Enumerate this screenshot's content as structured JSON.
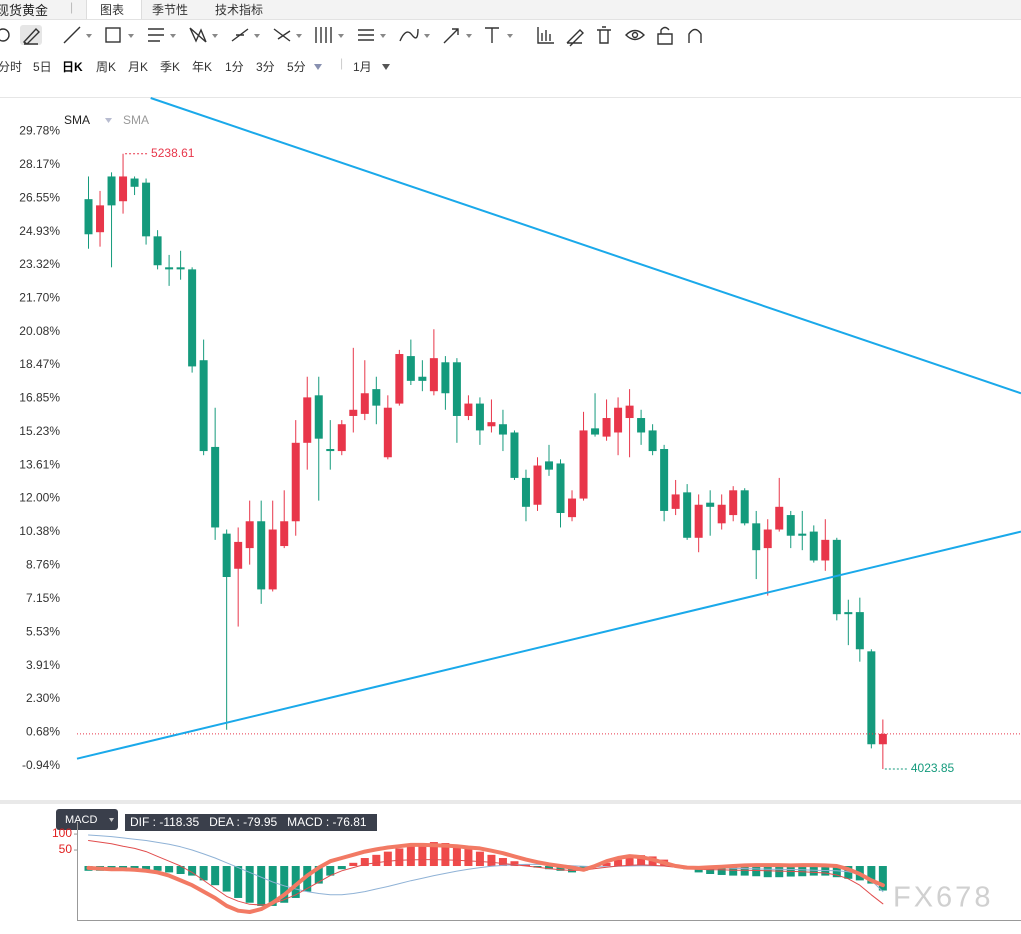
{
  "tabs": [
    "现货黄金",
    "图表",
    "季节性",
    "技术指标"
  ],
  "periods": [
    "分时",
    "5日",
    "日K",
    "周K",
    "月K",
    "季K",
    "年K",
    "1分",
    "3分",
    "5分",
    "1月"
  ],
  "indicators": {
    "main": [
      "SMA",
      "SMA"
    ],
    "sub": "MACD",
    "macd_info": "DIF : -118.35   DEA : -79.95   MACD : -76.81"
  },
  "watermark": "FX678",
  "chart_data": [
    {
      "type": "candlestick",
      "xlim": [
        -1,
        81
      ],
      "ylim": [
        -2.6,
        31.4
      ],
      "yticks": [
        {
          "value": 29.78,
          "label": "29.78%"
        },
        {
          "value": 28.17,
          "label": "28.17%"
        },
        {
          "value": 26.55,
          "label": "26.55%"
        },
        {
          "value": 24.93,
          "label": "24.93%"
        },
        {
          "value": 23.32,
          "label": "23.32%"
        },
        {
          "value": 21.7,
          "label": "21.70%"
        },
        {
          "value": 20.08,
          "label": "20.08%"
        },
        {
          "value": 18.47,
          "label": "18.47%"
        },
        {
          "value": 16.85,
          "label": "16.85%"
        },
        {
          "value": 15.23,
          "label": "15.23%"
        },
        {
          "value": 13.61,
          "label": "13.61%"
        },
        {
          "value": 12.0,
          "label": "12.00%"
        },
        {
          "value": 10.38,
          "label": "10.38%"
        },
        {
          "value": 8.76,
          "label": "8.76%"
        },
        {
          "value": 7.15,
          "label": "7.15%"
        },
        {
          "value": 5.53,
          "label": "5.53%"
        },
        {
          "value": 3.91,
          "label": "3.91%"
        },
        {
          "value": 2.3,
          "label": "2.30%"
        },
        {
          "value": 0.68,
          "label": "0.68%"
        },
        {
          "value": -0.94,
          "label": "-0.94%"
        }
      ],
      "up_color": "#e8364a",
      "down_color": "#149a7c",
      "open": [
        26.5,
        24.9,
        27.6,
        26.4,
        27.5,
        27.3,
        24.7,
        23.2,
        23.2,
        23.1,
        18.7,
        14.5,
        10.3,
        8.6,
        9.6,
        10.9,
        7.6,
        9.7,
        10.9,
        14.7,
        17.0,
        14.4,
        14.3,
        16.0,
        16.1,
        17.3,
        14.0,
        16.6,
        18.9,
        17.9,
        17.2,
        18.6,
        18.6,
        16.0,
        16.6,
        15.5,
        15.6,
        15.2,
        13.0,
        11.7,
        13.8,
        13.7,
        11.1,
        12.0,
        15.4,
        15.0,
        15.2,
        15.9,
        15.9,
        15.3,
        14.4,
        11.5,
        12.3,
        10.1,
        11.8,
        10.8,
        11.2,
        12.4,
        10.8,
        9.6,
        10.5,
        11.2,
        10.3,
        10.4,
        9.0,
        10.0,
        6.5,
        6.5,
        4.6,
        0.1
      ],
      "high": [
        27.6,
        26.9,
        27.8,
        28.7,
        27.6,
        27.5,
        25.0,
        23.8,
        24.0,
        23.2,
        19.7,
        16.4,
        10.5,
        10.6,
        11.9,
        11.9,
        11.9,
        12.4,
        15.8,
        17.9,
        17.9,
        15.8,
        15.8,
        19.3,
        18.7,
        17.9,
        17.0,
        19.2,
        19.7,
        18.7,
        20.2,
        18.9,
        18.8,
        17.0,
        16.9,
        16.8,
        16.3,
        15.3,
        13.4,
        14.0,
        14.6,
        13.9,
        12.4,
        16.2,
        17.1,
        16.8,
        16.9,
        17.3,
        16.3,
        15.6,
        14.6,
        12.9,
        12.7,
        12.2,
        12.4,
        12.2,
        12.6,
        12.5,
        11.4,
        11.0,
        13.0,
        11.4,
        11.4,
        10.7,
        11.0,
        10.1,
        7.1,
        7.2,
        4.7,
        1.3
      ],
      "low": [
        24.1,
        24.2,
        23.2,
        25.8,
        26.7,
        24.3,
        23.1,
        22.3,
        22.6,
        18.1,
        14.1,
        10.0,
        0.8,
        5.8,
        8.8,
        6.9,
        7.5,
        9.6,
        10.2,
        13.4,
        11.9,
        13.4,
        14.1,
        15.2,
        15.8,
        15.6,
        13.9,
        16.5,
        17.5,
        17.2,
        17.0,
        16.3,
        14.7,
        15.8,
        14.6,
        15.2,
        14.3,
        12.9,
        10.9,
        11.4,
        13.1,
        10.6,
        10.9,
        11.9,
        15.0,
        14.8,
        14.1,
        14.0,
        14.6,
        14.1,
        10.9,
        11.2,
        10.0,
        9.4,
        10.2,
        10.5,
        10.9,
        10.7,
        8.1,
        7.3,
        10.4,
        9.6,
        9.5,
        8.9,
        8.5,
        6.1,
        4.9,
        4.1,
        -0.1,
        -1.1
      ],
      "close": [
        24.8,
        26.2,
        26.2,
        27.6,
        27.1,
        24.7,
        23.3,
        23.1,
        23.1,
        18.4,
        14.3,
        10.6,
        8.2,
        9.9,
        10.9,
        7.6,
        10.5,
        10.9,
        14.7,
        16.9,
        14.9,
        14.3,
        15.6,
        16.3,
        17.1,
        16.5,
        16.4,
        19.0,
        17.7,
        17.7,
        18.8,
        17.1,
        16.0,
        16.6,
        15.3,
        15.7,
        15.1,
        13.0,
        11.6,
        13.6,
        13.4,
        11.3,
        12.0,
        15.3,
        15.1,
        15.9,
        16.4,
        16.5,
        15.2,
        14.3,
        11.4,
        12.2,
        10.1,
        11.7,
        11.6,
        11.7,
        12.4,
        10.8,
        9.5,
        10.5,
        11.6,
        10.2,
        10.2,
        9.0,
        10.0,
        6.4,
        6.4,
        4.7,
        0.1,
        0.6
      ],
      "high_label": "5238.61",
      "low_label": "4023.85",
      "trend_lines": [
        {
          "color": "#1aa9ea",
          "x": [
            5.4,
            81
          ],
          "y": [
            31.4,
            17.1
          ]
        },
        {
          "color": "#1aa9ea",
          "x": [
            -1,
            81
          ],
          "y": [
            -0.6,
            10.4
          ]
        }
      ]
    },
    {
      "type": "macd",
      "xlim": [
        -1,
        81
      ],
      "ylim": [
        -169,
        191
      ],
      "yticks": [
        100,
        50
      ],
      "tick_color": "#e02020",
      "histogram": {
        "up_color": "#ef4a4a",
        "down_color": "#149a7c",
        "values": [
          -15,
          -15,
          -12,
          -12,
          -10,
          -12,
          -15,
          -20,
          -25,
          -30,
          -45,
          -60,
          -80,
          -100,
          -115,
          -125,
          -125,
          -115,
          -100,
          -80,
          -55,
          -30,
          -10,
          10,
          25,
          35,
          45,
          55,
          65,
          70,
          75,
          72,
          65,
          55,
          45,
          35,
          25,
          15,
          5,
          -5,
          -10,
          -15,
          -20,
          -15,
          0,
          10,
          20,
          28,
          34,
          30,
          20,
          5,
          -10,
          -20,
          -25,
          -28,
          -30,
          -30,
          -32,
          -35,
          -35,
          -33,
          -32,
          -30,
          -30,
          -35,
          -40,
          -45,
          -55,
          -76.81
        ]
      },
      "series": [
        {
          "color": "#8fb2d6",
          "width": 1,
          "values": [
            97,
            95,
            92,
            88,
            84,
            80,
            74,
            68,
            60,
            50,
            38,
            25,
            10,
            -5,
            -20,
            -35,
            -50,
            -62,
            -72,
            -80,
            -86,
            -90,
            -90,
            -86,
            -80,
            -72,
            -64,
            -55,
            -46,
            -38,
            -30,
            -23,
            -16,
            -10,
            -5,
            -1,
            2,
            4,
            5,
            5,
            4,
            3,
            1,
            -1,
            -2,
            -2,
            -1,
            0,
            1,
            1,
            0,
            -1,
            -2,
            -4,
            -5,
            -6,
            -7,
            -8,
            -9,
            -10,
            -10,
            -11,
            -12,
            -13,
            -14,
            -15,
            -18,
            -25,
            -45,
            -79.95
          ]
        },
        {
          "color": "#e14d4d",
          "width": 1,
          "values": [
            80,
            75,
            70,
            62,
            55,
            45,
            30,
            15,
            0,
            -20,
            -45,
            -70,
            -95,
            -110,
            -120,
            -122,
            -118,
            -105,
            -90,
            -70,
            -50,
            -30,
            -15,
            -5,
            5,
            10,
            15,
            18,
            19,
            20,
            20,
            19,
            18,
            16,
            14,
            12,
            8,
            4,
            0,
            -4,
            -8,
            -12,
            -14,
            -13,
            -8,
            -4,
            0,
            2,
            4,
            2,
            0,
            -4,
            -8,
            -10,
            -12,
            -12,
            -13,
            -13,
            -14,
            -15,
            -16,
            -17,
            -18,
            -20,
            -22,
            -28,
            -40,
            -60,
            -90,
            -118.35
          ]
        },
        {
          "color": "#f27a64",
          "width": 4,
          "values": [
            -6,
            -8,
            -10,
            -10,
            -12,
            -15,
            -20,
            -30,
            -45,
            -60,
            -80,
            -100,
            -125,
            -140,
            -144,
            -135,
            -115,
            -90,
            -60,
            -30,
            -5,
            15,
            25,
            35,
            45,
            52,
            58,
            62,
            66,
            66,
            65,
            64,
            62,
            58,
            55,
            48,
            40,
            30,
            20,
            12,
            5,
            0,
            -5,
            -12,
            0,
            15,
            25,
            31,
            28,
            20,
            10,
            0,
            -5,
            -6,
            -4,
            -2,
            0,
            2,
            3,
            3,
            3,
            2,
            3,
            3,
            2,
            0,
            -10,
            -25,
            -45,
            -60
          ]
        }
      ]
    }
  ]
}
